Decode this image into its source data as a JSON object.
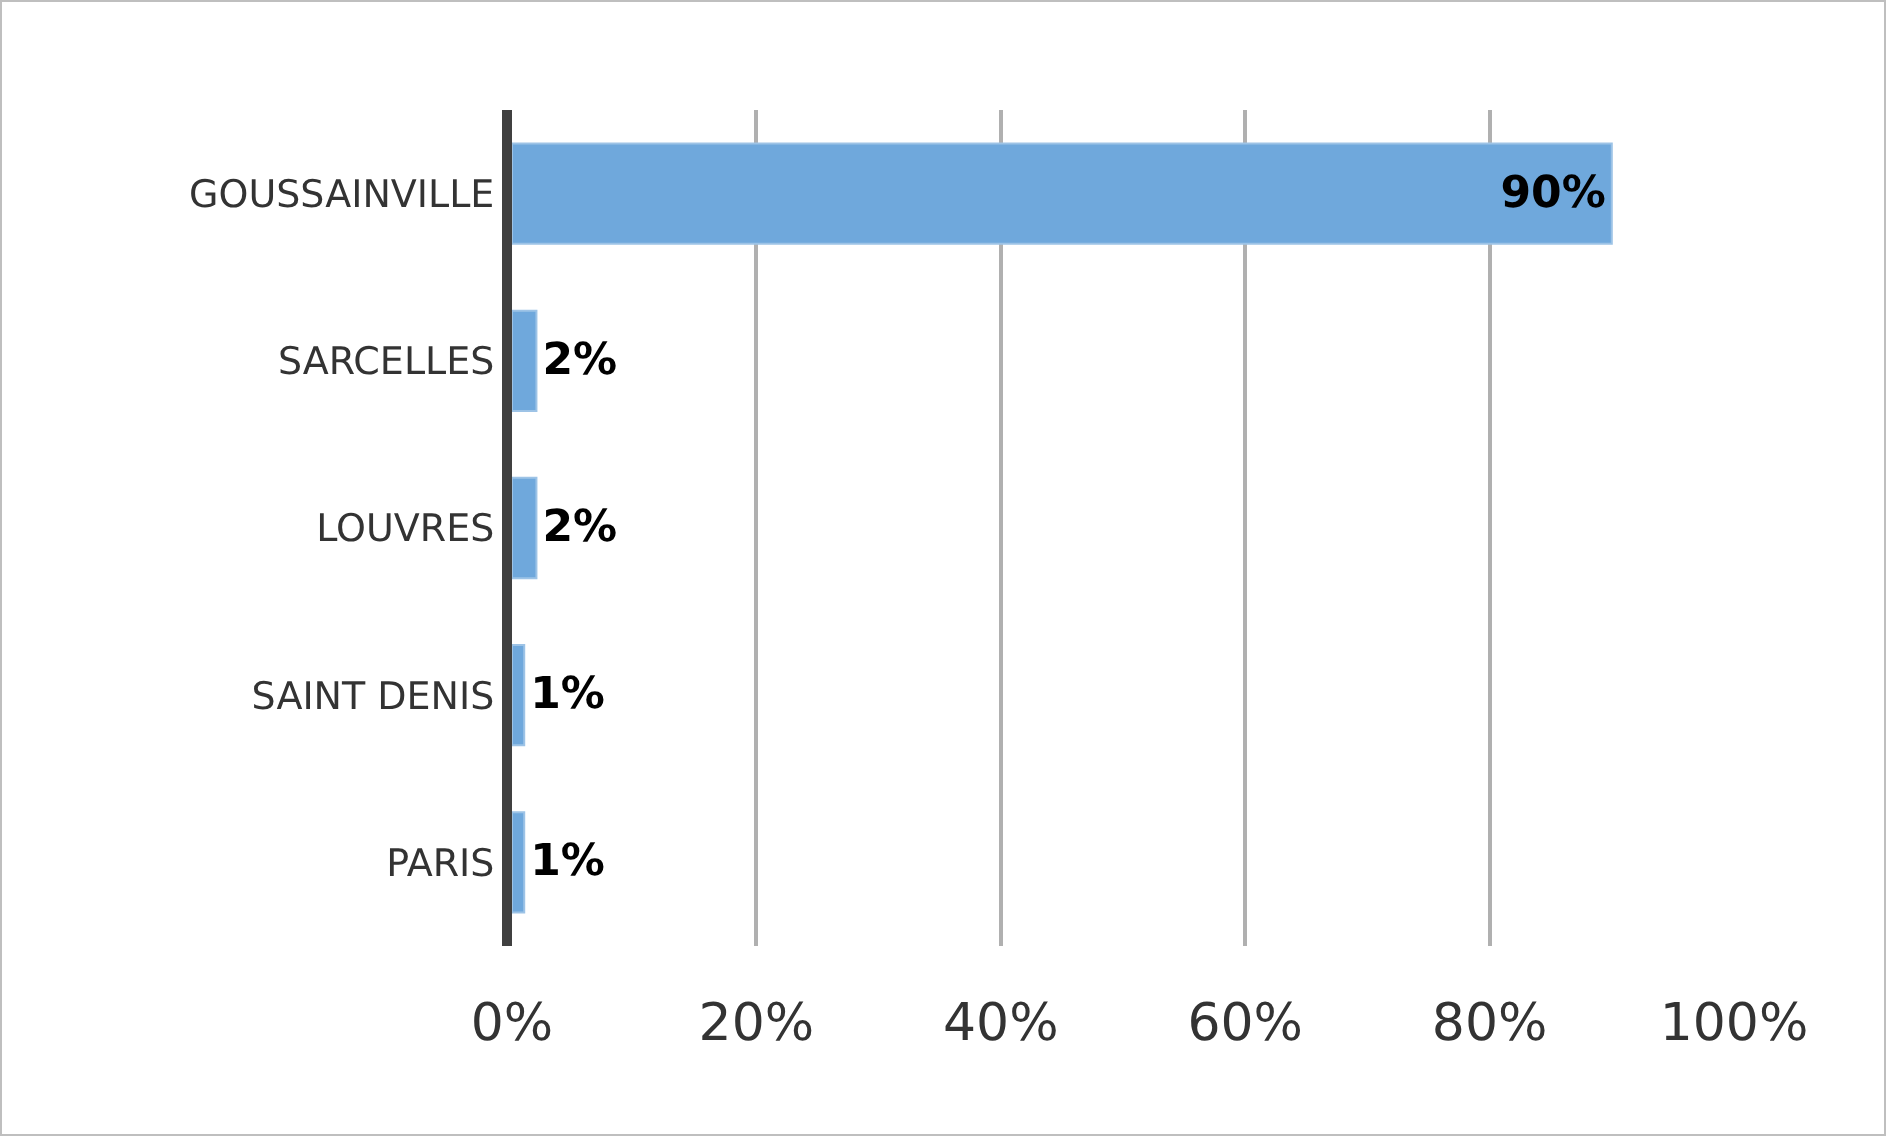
{
  "chart_data": {
    "type": "bar",
    "orientation": "horizontal",
    "categories": [
      "GOUSSAINVILLE",
      "SARCELLES",
      "LOUVRES",
      "SAINT DENIS",
      "PARIS"
    ],
    "values": [
      90,
      2,
      2,
      1,
      1
    ],
    "value_labels": [
      "90%",
      "2%",
      "2%",
      "1%",
      "1%"
    ],
    "color": "#6fa8dc",
    "xlim": [
      0,
      100
    ],
    "xticks": [
      {
        "value": 0,
        "label": "0%"
      },
      {
        "value": 20,
        "label": "20%"
      },
      {
        "value": 40,
        "label": "40%"
      },
      {
        "value": 60,
        "label": "60%"
      },
      {
        "value": 80,
        "label": "80%"
      },
      {
        "value": 100,
        "label": "100%"
      }
    ],
    "grid": "x",
    "legend": false
  }
}
